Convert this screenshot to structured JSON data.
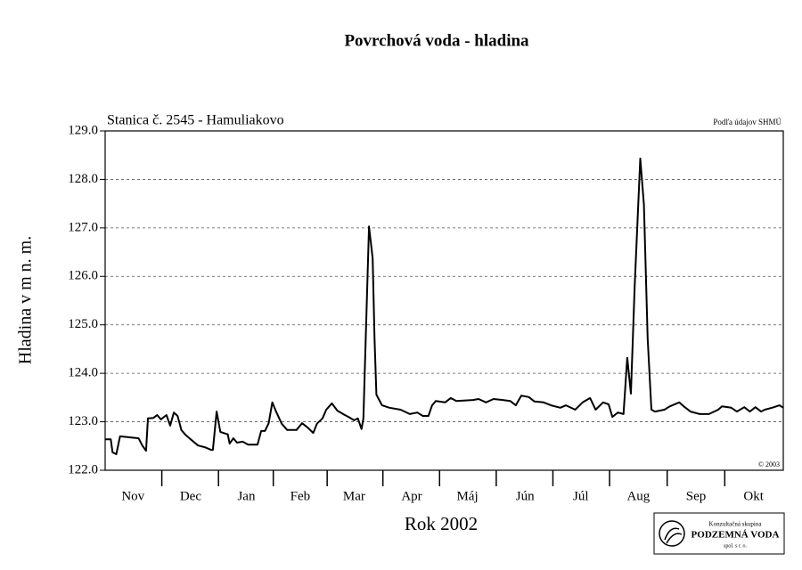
{
  "chart_data": {
    "type": "line",
    "title": "Povrchová voda - hladina",
    "subtitle": "Stanica č. 2545 - Hamuliakovo",
    "source": "Podľa údajov SHMÚ",
    "copyright": "© 2003",
    "ylabel": "Hladina v m n. m.",
    "xlabel": "Rok 2002",
    "logo": {
      "line1": "Konzultačná skupina",
      "line2": "PODZEMNÁ VODA",
      "line3": "spol. s r. o."
    },
    "xlim": [
      0,
      365
    ],
    "xticks": [
      {
        "value": 15,
        "label": "Nov"
      },
      {
        "value": 46,
        "label": "Dec"
      },
      {
        "value": 76,
        "label": "Jan"
      },
      {
        "value": 105,
        "label": "Feb"
      },
      {
        "value": 134,
        "label": "Mar"
      },
      {
        "value": 165,
        "label": "Apr"
      },
      {
        "value": 195,
        "label": "Máj"
      },
      {
        "value": 226,
        "label": "Jún"
      },
      {
        "value": 256,
        "label": "Júl"
      },
      {
        "value": 287,
        "label": "Aug"
      },
      {
        "value": 318,
        "label": "Sep"
      },
      {
        "value": 349,
        "label": "Okt"
      }
    ],
    "ylim": [
      122,
      129
    ],
    "yticks": [
      {
        "value": 122,
        "label": "122.0"
      },
      {
        "value": 123,
        "label": "123.0"
      },
      {
        "value": 124,
        "label": "124.0"
      },
      {
        "value": 125,
        "label": "125.0"
      },
      {
        "value": 126,
        "label": "126.0"
      },
      {
        "value": 127,
        "label": "127.0"
      },
      {
        "value": 128,
        "label": "128.0"
      },
      {
        "value": 129,
        "label": "129.0"
      }
    ],
    "grid": true,
    "series": [
      {
        "color": "#000000",
        "x": [
          0,
          3,
          4,
          6,
          8,
          13,
          18,
          20,
          22,
          23,
          26,
          28,
          30,
          33,
          35,
          37,
          39,
          41,
          43,
          46,
          50,
          54,
          57,
          58,
          60,
          62,
          66,
          67,
          69,
          71,
          74,
          77,
          82,
          84,
          86,
          88,
          90,
          92,
          95,
          98,
          103,
          106,
          109,
          112,
          114,
          117,
          119,
          122,
          125,
          129,
          131,
          134,
          136,
          138,
          139,
          141,
          142,
          144,
          145,
          146,
          149,
          153,
          159,
          164,
          168,
          171,
          174,
          176,
          178,
          183,
          186,
          189,
          198,
          201,
          205,
          209,
          214,
          218,
          221,
          224,
          228,
          231,
          236,
          240,
          245,
          248,
          253,
          257,
          261,
          264,
          268,
          271,
          273,
          276,
          279,
          281,
          283,
          285,
          288,
          290,
          292,
          294,
          296,
          301,
          304,
          309,
          312,
          315,
          320,
          325,
          330,
          332,
          337,
          340,
          344,
          347,
          350,
          353,
          355,
          359,
          363,
          365
        ],
        "values": [
          122.64,
          122.64,
          122.37,
          122.33,
          122.7,
          122.68,
          122.66,
          122.51,
          122.4,
          123.07,
          123.08,
          123.14,
          123.05,
          123.14,
          122.92,
          123.19,
          123.12,
          122.83,
          122.74,
          122.64,
          122.51,
          122.47,
          122.42,
          122.42,
          123.21,
          122.79,
          122.74,
          122.55,
          122.66,
          122.57,
          122.59,
          122.53,
          122.53,
          122.81,
          122.81,
          122.97,
          123.4,
          123.21,
          122.96,
          122.83,
          122.83,
          122.97,
          122.88,
          122.77,
          122.96,
          123.07,
          123.25,
          123.38,
          123.23,
          123.14,
          123.1,
          123.03,
          123.07,
          122.85,
          123.07,
          125.71,
          127.03,
          126.37,
          124.72,
          123.56,
          123.34,
          123.29,
          123.25,
          123.16,
          123.19,
          123.12,
          123.12,
          123.34,
          123.43,
          123.4,
          123.49,
          123.43,
          123.45,
          123.47,
          123.4,
          123.47,
          123.45,
          123.43,
          123.34,
          123.54,
          123.51,
          123.42,
          123.4,
          123.34,
          123.29,
          123.34,
          123.25,
          123.4,
          123.49,
          123.25,
          123.4,
          123.36,
          123.1,
          123.19,
          123.16,
          124.32,
          123.58,
          125.78,
          128.43,
          127.48,
          124.72,
          123.25,
          123.21,
          123.25,
          123.32,
          123.4,
          123.3,
          123.21,
          123.16,
          123.16,
          123.25,
          123.32,
          123.29,
          123.21,
          123.3,
          123.21,
          123.3,
          123.21,
          123.25,
          123.29,
          123.34,
          123.29
        ]
      }
    ]
  }
}
